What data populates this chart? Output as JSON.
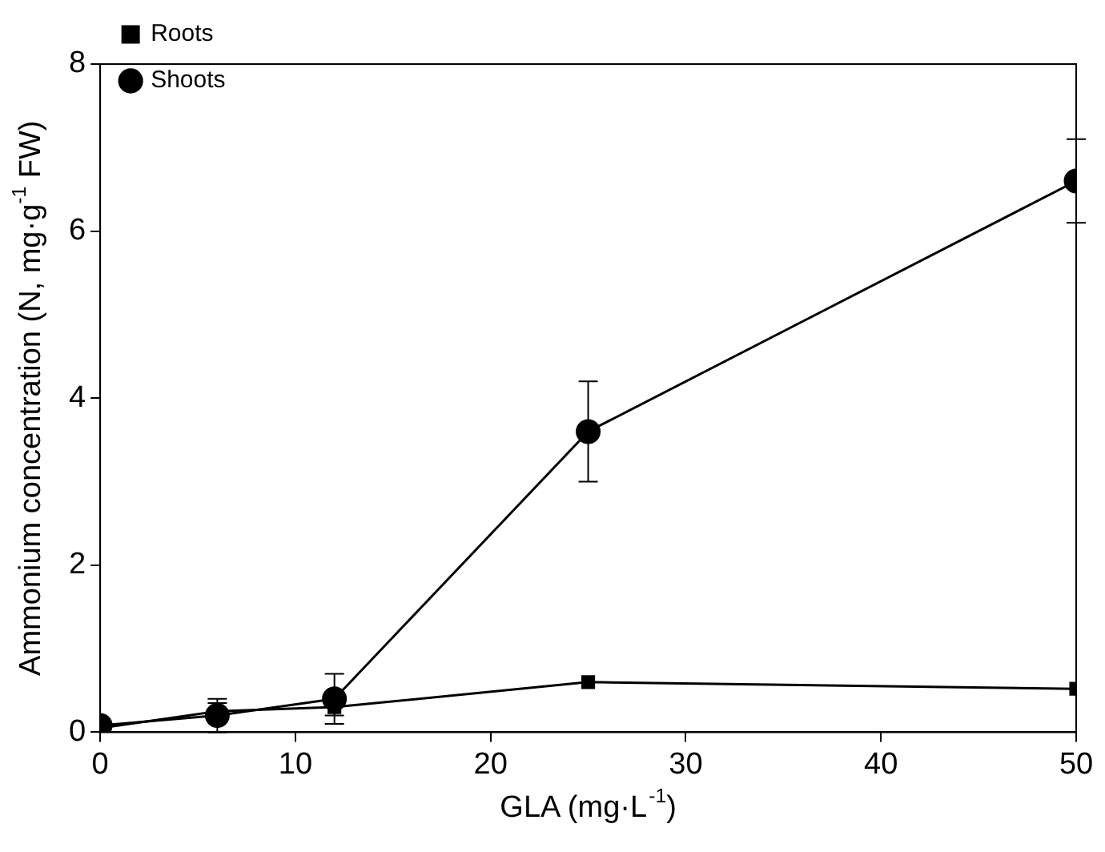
{
  "chart_data": {
    "type": "line",
    "xlabel": "GLA (mg·L$^{-1}$)",
    "ylabel": "Ammonium concentration (N, mg·g$^{-1}$ FW)",
    "x": [
      0,
      6,
      12,
      25,
      50
    ],
    "series": [
      {
        "name": "Shoots",
        "color": "#000000",
        "marker": "circle",
        "values": [
          0.08,
          0.2,
          0.4,
          3.6,
          6.6
        ],
        "errors": [
          null,
          0.2,
          0.3,
          0.6,
          0.5
        ]
      },
      {
        "name": "Roots",
        "color": "#000000",
        "marker": "square",
        "values": [
          0.05,
          0.25,
          0.3,
          0.6,
          0.52
        ],
        "errors": [
          null,
          0.1,
          0.1,
          null,
          null
        ]
      }
    ],
    "xlim": [
      0,
      50
    ],
    "xticks": [
      0,
      10,
      20,
      30,
      40,
      50
    ],
    "ylim": [
      0,
      8
    ],
    "yticks": [
      0,
      2,
      4,
      6,
      8
    ],
    "grid": false,
    "legend": "top left",
    "line_style": "solid"
  }
}
